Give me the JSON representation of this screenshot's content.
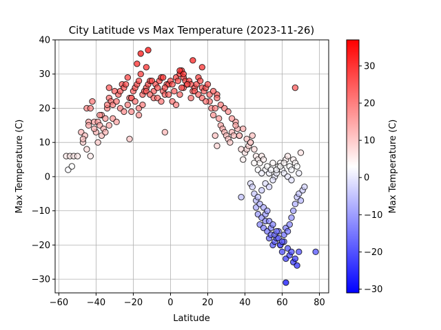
{
  "chart_data": {
    "type": "scatter",
    "title": "City Latitude vs Max Temperature (2023-11-26)",
    "xlabel": "Latitude",
    "ylabel": "Max Temperature (C)",
    "xlim": [
      -62,
      85
    ],
    "ylim": [
      -34,
      40
    ],
    "x_ticks": [
      -60,
      -40,
      -20,
      0,
      20,
      40,
      60,
      80
    ],
    "y_ticks": [
      -30,
      -20,
      -10,
      0,
      10,
      20,
      30,
      40
    ],
    "grid": true,
    "colorbar": {
      "label": "Max Temperature (C)",
      "range": [
        -31,
        37
      ],
      "ticks": [
        -30,
        -20,
        -10,
        0,
        10,
        20,
        30
      ],
      "colormap": "bwr",
      "colors": [
        "#0000ff",
        "#ffffff",
        "#ff0000"
      ]
    },
    "marker": {
      "edge_color": "#000000",
      "alpha": 0.7
    },
    "x": [
      -56,
      -54,
      -52,
      -50,
      -55,
      -53,
      -48,
      -46,
      -45,
      -44,
      -43,
      -42,
      -41,
      -40,
      -39,
      -38,
      -37,
      -36,
      -35,
      -34,
      -33,
      -32,
      -31,
      -30,
      -29,
      -28,
      -27,
      -26,
      -25,
      -24,
      -23,
      -22,
      -21,
      -20,
      -19,
      -18,
      -17,
      -16,
      -15,
      -14,
      -13,
      -12,
      -11,
      -10,
      -9,
      -8,
      -7,
      -6,
      -5,
      -4,
      -3,
      -2,
      -1,
      0,
      1,
      2,
      3,
      4,
      5,
      6,
      7,
      8,
      9,
      10,
      11,
      12,
      13,
      14,
      15,
      16,
      17,
      18,
      19,
      20,
      21,
      22,
      23,
      24,
      25,
      26,
      27,
      28,
      29,
      30,
      31,
      32,
      33,
      34,
      35,
      36,
      37,
      38,
      39,
      40,
      41,
      42,
      43,
      44,
      45,
      46,
      47,
      48,
      49,
      50,
      51,
      52,
      53,
      54,
      55,
      56,
      57,
      58,
      59,
      60,
      61,
      62,
      63,
      64,
      65,
      66,
      67,
      68,
      69,
      70,
      -47,
      -45,
      -43,
      -41,
      -39,
      -37,
      -35,
      -33,
      -31,
      -29,
      -27,
      -25,
      -23,
      -21,
      -19,
      -17,
      -15,
      -13,
      -11,
      -9,
      -7,
      -5,
      -3,
      -1,
      1,
      3,
      5,
      7,
      9,
      11,
      13,
      15,
      17,
      19,
      21,
      23,
      25,
      27,
      29,
      31,
      33,
      35,
      37,
      39,
      41,
      43,
      45,
      47,
      49,
      51,
      53,
      55,
      57,
      59,
      61,
      63,
      65,
      67,
      -34,
      -18,
      -16,
      -13,
      -22,
      -3,
      5,
      6,
      12,
      -21,
      -12,
      7,
      17,
      25,
      -17,
      -4,
      24,
      38,
      46,
      47,
      48,
      49,
      50,
      51,
      52,
      53,
      54,
      55,
      56,
      57,
      58,
      59,
      60,
      61,
      62,
      63,
      64,
      65,
      66,
      67,
      68,
      69,
      43,
      44,
      45,
      46,
      47,
      48,
      49,
      50,
      51,
      52,
      53,
      54,
      55,
      56,
      57,
      58,
      59,
      60,
      61,
      62,
      63,
      64,
      65,
      66,
      67,
      68,
      69,
      70,
      71,
      72,
      78,
      62,
      -33,
      -44,
      -38,
      -47
    ],
    "y": [
      6,
      6,
      6,
      6,
      2,
      3,
      13,
      12,
      20,
      16,
      20,
      22,
      16,
      13,
      16,
      15,
      18,
      14,
      17,
      20,
      23,
      22,
      21,
      25,
      22,
      24,
      25,
      27,
      26,
      27,
      29,
      23,
      23,
      25,
      26,
      27,
      28,
      30,
      24,
      25,
      26,
      27,
      28,
      28,
      25,
      27,
      26,
      28,
      29,
      25,
      24,
      27,
      27,
      28,
      27,
      25,
      29,
      28,
      30,
      31,
      29,
      28,
      27,
      28,
      27,
      25,
      26,
      27,
      29,
      28,
      26,
      25,
      26,
      27,
      22,
      20,
      18,
      20,
      24,
      17,
      15,
      14,
      13,
      12,
      11,
      10,
      13,
      12,
      16,
      14,
      12,
      8,
      5,
      7,
      8,
      9,
      10,
      12,
      8,
      6,
      5,
      4,
      6,
      5,
      2,
      3,
      1,
      2,
      4,
      0,
      1,
      3,
      4,
      2,
      1,
      5,
      6,
      3,
      2,
      5,
      4,
      3,
      1,
      7,
      10,
      8,
      6,
      14,
      10,
      12,
      13,
      15,
      17,
      16,
      20,
      19,
      21,
      23,
      22,
      20,
      21,
      25,
      24,
      23,
      23,
      22,
      26,
      24,
      22,
      21,
      24,
      26,
      27,
      23,
      25,
      24,
      23,
      22,
      24,
      25,
      23,
      21,
      20,
      19,
      17,
      15,
      12,
      14,
      11,
      10,
      4,
      2,
      1,
      -2,
      -3,
      -1,
      2,
      3,
      4,
      0,
      -1,
      26,
      21,
      33,
      36,
      32,
      11,
      13,
      31,
      26,
      34,
      19,
      37,
      30,
      32,
      9,
      18,
      29,
      12,
      -6,
      -9,
      -11,
      -14,
      -12,
      -15,
      -13,
      -16,
      -18,
      -17,
      -20,
      -19,
      -18,
      -16,
      -20,
      -22,
      -19,
      -24,
      -21,
      -23,
      -22,
      -25,
      -24,
      -26,
      -22,
      -2,
      -3,
      -5,
      -7,
      -6,
      -8,
      -4,
      -9,
      -11,
      -10,
      -13,
      -15,
      -14,
      -17,
      -16,
      -18,
      -20,
      -19,
      -17,
      -15,
      -16,
      -14,
      -12,
      -10,
      -8,
      -6,
      -5,
      -7,
      -4,
      -3,
      -22,
      -31,
      26,
      15,
      18,
      11
    ]
  }
}
